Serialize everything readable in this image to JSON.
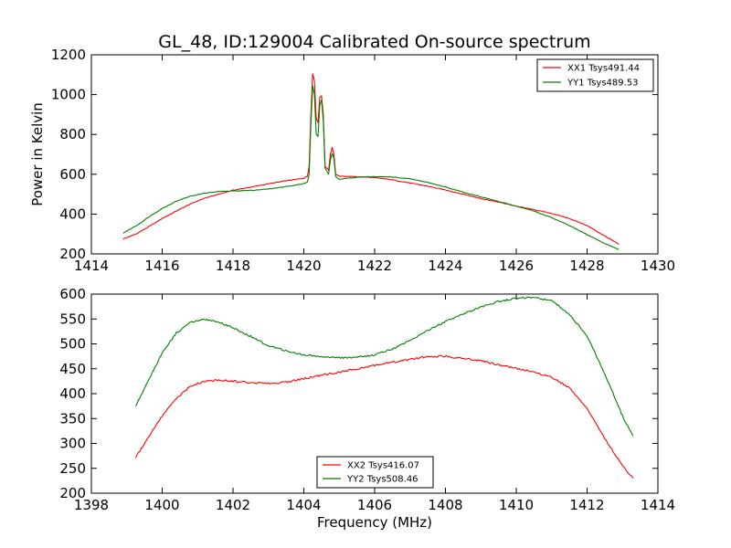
{
  "title": "GL_48, ID:129004 Calibrated On-source spectrum",
  "colors": {
    "xx": "#ff0000",
    "yy": "#008000"
  },
  "chart_data": [
    {
      "type": "line",
      "xlim": [
        1414,
        1430
      ],
      "ylim": [
        200,
        1200
      ],
      "xticks": [
        1414,
        1416,
        1418,
        1420,
        1422,
        1424,
        1426,
        1428,
        1430
      ],
      "yticks": [
        200,
        400,
        600,
        800,
        1000,
        1200
      ],
      "xlabel": "",
      "ylabel": "Power in Kelvin",
      "legend_position": "top-right",
      "series": [
        {
          "name": "XX1 Tsys491.44",
          "color": "#ff0000",
          "points": [
            [
              1414.9,
              275
            ],
            [
              1415.3,
              303
            ],
            [
              1415.7,
              345
            ],
            [
              1416.0,
              378
            ],
            [
              1416.4,
              415
            ],
            [
              1416.8,
              451
            ],
            [
              1417.2,
              480
            ],
            [
              1417.6,
              500
            ],
            [
              1418.0,
              520
            ],
            [
              1418.5,
              535
            ],
            [
              1419.0,
              552
            ],
            [
              1419.5,
              567
            ],
            [
              1420.0,
              580
            ],
            [
              1420.1,
              590
            ],
            [
              1420.15,
              640
            ],
            [
              1420.2,
              900
            ],
            [
              1420.25,
              1105
            ],
            [
              1420.3,
              1070
            ],
            [
              1420.35,
              880
            ],
            [
              1420.4,
              860
            ],
            [
              1420.45,
              985
            ],
            [
              1420.5,
              995
            ],
            [
              1420.55,
              900
            ],
            [
              1420.6,
              640
            ],
            [
              1420.7,
              620
            ],
            [
              1420.75,
              700
            ],
            [
              1420.8,
              735
            ],
            [
              1420.85,
              700
            ],
            [
              1420.9,
              600
            ],
            [
              1421.0,
              590
            ],
            [
              1421.5,
              588
            ],
            [
              1422.0,
              583
            ],
            [
              1422.5,
              572
            ],
            [
              1423.0,
              556
            ],
            [
              1423.5,
              540
            ],
            [
              1424.0,
              521
            ],
            [
              1424.5,
              500
            ],
            [
              1425.0,
              478
            ],
            [
              1425.5,
              460
            ],
            [
              1426.0,
              440
            ],
            [
              1426.5,
              422
            ],
            [
              1427.0,
              403
            ],
            [
              1427.5,
              378
            ],
            [
              1428.0,
              342
            ],
            [
              1428.5,
              290
            ],
            [
              1428.9,
              248
            ]
          ]
        },
        {
          "name": "YY1 Tsys489.53",
          "color": "#008000",
          "points": [
            [
              1414.9,
              305
            ],
            [
              1415.3,
              345
            ],
            [
              1415.7,
              395
            ],
            [
              1416.0,
              428
            ],
            [
              1416.4,
              465
            ],
            [
              1416.8,
              490
            ],
            [
              1417.2,
              505
            ],
            [
              1417.6,
              513
            ],
            [
              1418.0,
              516
            ],
            [
              1418.5,
              519
            ],
            [
              1419.0,
              526
            ],
            [
              1419.5,
              538
            ],
            [
              1420.0,
              553
            ],
            [
              1420.1,
              560
            ],
            [
              1420.15,
              600
            ],
            [
              1420.2,
              850
            ],
            [
              1420.25,
              1045
            ],
            [
              1420.3,
              1000
            ],
            [
              1420.35,
              800
            ],
            [
              1420.4,
              790
            ],
            [
              1420.45,
              945
            ],
            [
              1420.5,
              975
            ],
            [
              1420.55,
              870
            ],
            [
              1420.6,
              630
            ],
            [
              1420.7,
              600
            ],
            [
              1420.75,
              670
            ],
            [
              1420.8,
              705
            ],
            [
              1420.85,
              680
            ],
            [
              1420.9,
              590
            ],
            [
              1421.0,
              575
            ],
            [
              1421.5,
              585
            ],
            [
              1422.0,
              588
            ],
            [
              1422.5,
              586
            ],
            [
              1423.0,
              577
            ],
            [
              1423.5,
              559
            ],
            [
              1424.0,
              536
            ],
            [
              1424.5,
              510
            ],
            [
              1425.0,
              487
            ],
            [
              1425.5,
              463
            ],
            [
              1426.0,
              440
            ],
            [
              1426.5,
              415
            ],
            [
              1427.0,
              382
            ],
            [
              1427.5,
              342
            ],
            [
              1428.0,
              297
            ],
            [
              1428.5,
              252
            ],
            [
              1428.9,
              222
            ]
          ]
        }
      ]
    },
    {
      "type": "line",
      "xlim": [
        1398,
        1414
      ],
      "ylim": [
        200,
        600
      ],
      "xticks": [
        1398,
        1400,
        1402,
        1404,
        1406,
        1408,
        1410,
        1412,
        1414
      ],
      "yticks": [
        200,
        250,
        300,
        350,
        400,
        450,
        500,
        550,
        600
      ],
      "xlabel": "Frequency (MHz)",
      "ylabel": "",
      "legend_position": "lower-center",
      "series": [
        {
          "name": "XX2 Tsys416.07",
          "color": "#ff0000",
          "points": [
            [
              1399.25,
              272
            ],
            [
              1399.6,
              310
            ],
            [
              1400.0,
              355
            ],
            [
              1400.4,
              390
            ],
            [
              1400.8,
              415
            ],
            [
              1401.2,
              425
            ],
            [
              1401.6,
              427
            ],
            [
              1402.0,
              425
            ],
            [
              1402.5,
              422
            ],
            [
              1403.0,
              420
            ],
            [
              1403.5,
              423
            ],
            [
              1404.0,
              430
            ],
            [
              1404.5,
              437
            ],
            [
              1405.0,
              443
            ],
            [
              1405.5,
              450
            ],
            [
              1406.0,
              457
            ],
            [
              1406.5,
              463
            ],
            [
              1407.0,
              469
            ],
            [
              1407.5,
              474
            ],
            [
              1408.0,
              475
            ],
            [
              1408.5,
              471
            ],
            [
              1409.0,
              466
            ],
            [
              1409.5,
              458
            ],
            [
              1410.0,
              451
            ],
            [
              1410.5,
              443
            ],
            [
              1411.0,
              433
            ],
            [
              1411.5,
              412
            ],
            [
              1412.0,
              370
            ],
            [
              1412.5,
              310
            ],
            [
              1413.0,
              255
            ],
            [
              1413.3,
              230
            ]
          ]
        },
        {
          "name": "YY2 Tsys508.46",
          "color": "#008000",
          "points": [
            [
              1399.25,
              375
            ],
            [
              1399.6,
              425
            ],
            [
              1400.0,
              482
            ],
            [
              1400.4,
              522
            ],
            [
              1400.8,
              543
            ],
            [
              1401.1,
              549
            ],
            [
              1401.5,
              546
            ],
            [
              1402.0,
              532
            ],
            [
              1402.5,
              515
            ],
            [
              1403.0,
              496
            ],
            [
              1403.5,
              486
            ],
            [
              1404.0,
              478
            ],
            [
              1404.5,
              474
            ],
            [
              1405.0,
              472
            ],
            [
              1405.5,
              473
            ],
            [
              1406.0,
              478
            ],
            [
              1406.5,
              490
            ],
            [
              1407.0,
              507
            ],
            [
              1407.5,
              527
            ],
            [
              1408.0,
              545
            ],
            [
              1408.5,
              560
            ],
            [
              1409.0,
              574
            ],
            [
              1409.5,
              585
            ],
            [
              1410.0,
              592
            ],
            [
              1410.5,
              593
            ],
            [
              1411.0,
              587
            ],
            [
              1411.5,
              560
            ],
            [
              1412.0,
              515
            ],
            [
              1412.5,
              440
            ],
            [
              1413.0,
              355
            ],
            [
              1413.3,
              315
            ]
          ]
        }
      ]
    }
  ]
}
